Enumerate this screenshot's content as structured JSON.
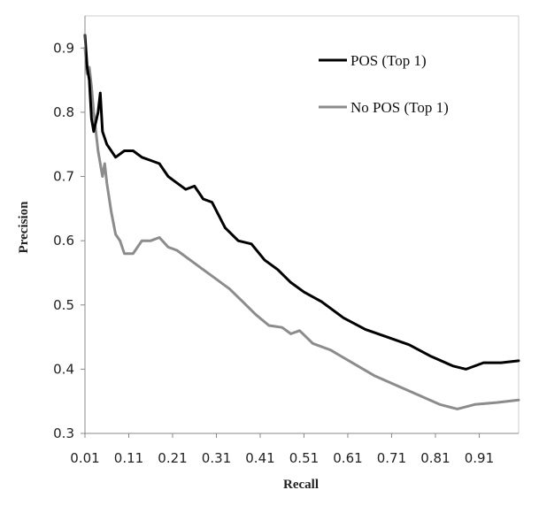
{
  "chart_data": {
    "type": "line",
    "xlabel": "Recall",
    "ylabel": "Precision",
    "xlim": [
      0.01,
      1.0
    ],
    "ylim": [
      0.3,
      0.95
    ],
    "xticks": [
      "0.01",
      "0.11",
      "0.21",
      "0.31",
      "0.41",
      "0.51",
      "0.61",
      "0.71",
      "0.81",
      "0.91"
    ],
    "xtick_values": [
      0.01,
      0.11,
      0.21,
      0.31,
      0.41,
      0.51,
      0.61,
      0.71,
      0.81,
      0.91
    ],
    "yticks": [
      "0.3",
      "0.4",
      "0.5",
      "0.6",
      "0.7",
      "0.8",
      "0.9"
    ],
    "ytick_values": [
      0.3,
      0.4,
      0.5,
      0.6,
      0.7,
      0.8,
      0.9
    ],
    "grid": false,
    "legend_position": "top-right",
    "series": [
      {
        "name": "POS (Top 1)",
        "color": "#000000",
        "points": [
          [
            0.01,
            0.92
          ],
          [
            0.015,
            0.87
          ],
          [
            0.02,
            0.85
          ],
          [
            0.025,
            0.79
          ],
          [
            0.03,
            0.77
          ],
          [
            0.04,
            0.8
          ],
          [
            0.045,
            0.83
          ],
          [
            0.05,
            0.77
          ],
          [
            0.06,
            0.75
          ],
          [
            0.07,
            0.74
          ],
          [
            0.08,
            0.73
          ],
          [
            0.1,
            0.74
          ],
          [
            0.12,
            0.74
          ],
          [
            0.14,
            0.73
          ],
          [
            0.16,
            0.725
          ],
          [
            0.18,
            0.72
          ],
          [
            0.2,
            0.7
          ],
          [
            0.22,
            0.69
          ],
          [
            0.24,
            0.68
          ],
          [
            0.26,
            0.685
          ],
          [
            0.28,
            0.665
          ],
          [
            0.3,
            0.66
          ],
          [
            0.33,
            0.62
          ],
          [
            0.36,
            0.6
          ],
          [
            0.39,
            0.595
          ],
          [
            0.42,
            0.57
          ],
          [
            0.45,
            0.555
          ],
          [
            0.48,
            0.535
          ],
          [
            0.51,
            0.52
          ],
          [
            0.55,
            0.505
          ],
          [
            0.6,
            0.48
          ],
          [
            0.65,
            0.462
          ],
          [
            0.7,
            0.45
          ],
          [
            0.75,
            0.438
          ],
          [
            0.8,
            0.42
          ],
          [
            0.85,
            0.405
          ],
          [
            0.88,
            0.4
          ],
          [
            0.92,
            0.41
          ],
          [
            0.96,
            0.41
          ],
          [
            1.0,
            0.413
          ]
        ]
      },
      {
        "name": "No POS (Top 1)",
        "color": "#8c8c8c",
        "points": [
          [
            0.01,
            0.9
          ],
          [
            0.015,
            0.86
          ],
          [
            0.02,
            0.87
          ],
          [
            0.025,
            0.84
          ],
          [
            0.03,
            0.8
          ],
          [
            0.04,
            0.74
          ],
          [
            0.045,
            0.72
          ],
          [
            0.05,
            0.7
          ],
          [
            0.055,
            0.72
          ],
          [
            0.06,
            0.69
          ],
          [
            0.07,
            0.645
          ],
          [
            0.08,
            0.61
          ],
          [
            0.09,
            0.6
          ],
          [
            0.1,
            0.58
          ],
          [
            0.12,
            0.58
          ],
          [
            0.14,
            0.6
          ],
          [
            0.16,
            0.6
          ],
          [
            0.18,
            0.605
          ],
          [
            0.2,
            0.59
          ],
          [
            0.22,
            0.585
          ],
          [
            0.25,
            0.57
          ],
          [
            0.28,
            0.555
          ],
          [
            0.31,
            0.54
          ],
          [
            0.34,
            0.525
          ],
          [
            0.37,
            0.505
          ],
          [
            0.4,
            0.485
          ],
          [
            0.43,
            0.468
          ],
          [
            0.46,
            0.465
          ],
          [
            0.48,
            0.455
          ],
          [
            0.5,
            0.46
          ],
          [
            0.53,
            0.44
          ],
          [
            0.57,
            0.43
          ],
          [
            0.62,
            0.41
          ],
          [
            0.67,
            0.39
          ],
          [
            0.72,
            0.375
          ],
          [
            0.77,
            0.36
          ],
          [
            0.82,
            0.345
          ],
          [
            0.86,
            0.338
          ],
          [
            0.9,
            0.345
          ],
          [
            0.95,
            0.348
          ],
          [
            1.0,
            0.352
          ]
        ]
      }
    ]
  }
}
